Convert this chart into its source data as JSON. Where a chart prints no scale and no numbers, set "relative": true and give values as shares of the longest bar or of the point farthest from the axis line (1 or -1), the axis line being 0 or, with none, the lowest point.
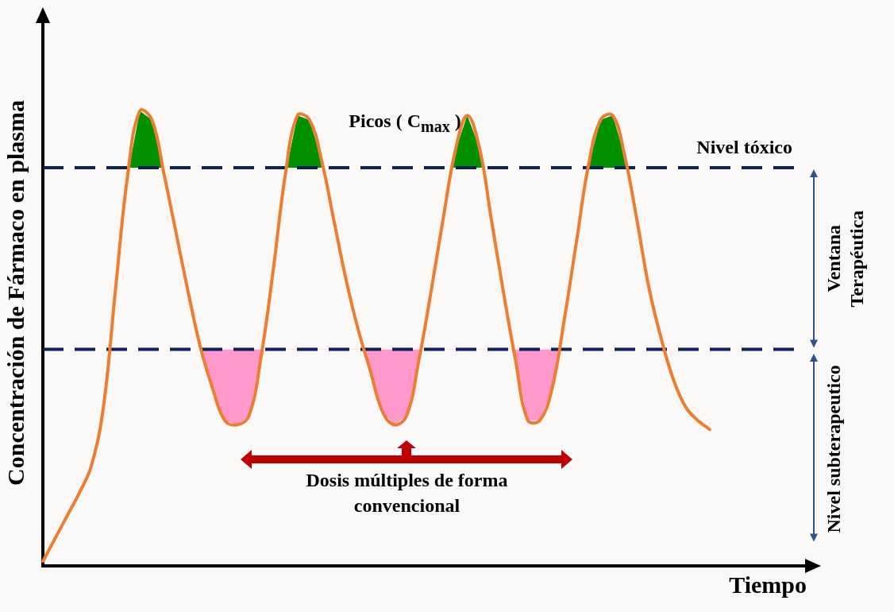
{
  "chart_data": {
    "type": "line",
    "relative": true,
    "xlabel": "Tiempo",
    "ylabel": "Concentración de Fármaco en plasma",
    "categories": [
      null,
      null,
      null,
      null,
      null,
      null,
      null,
      null,
      null,
      null,
      null,
      null,
      null,
      null,
      null,
      null,
      null,
      null,
      null,
      null,
      null,
      null,
      null,
      null,
      null,
      null,
      null,
      null,
      null,
      null,
      null,
      null,
      null,
      null,
      null,
      null,
      null,
      null,
      null,
      null,
      null,
      null,
      null,
      null,
      null,
      null,
      null,
      null,
      null,
      null,
      null,
      null,
      null,
      null,
      null,
      null,
      null,
      null,
      null,
      null,
      null,
      null,
      null,
      null
    ],
    "series": [
      {
        "color": "#ed7d31",
        "values": [
          0.01,
          0.06,
          0.11,
          0.16,
          0.22,
          0.35,
          0.61,
          0.86,
          1,
          0.98,
          0.86,
          0.73,
          0.6,
          0.48,
          0.39,
          0.32,
          0.31,
          0.33,
          0.46,
          0.65,
          0.86,
          0.99,
          0.98,
          0.89,
          0.76,
          0.63,
          0.52,
          0.43,
          0.34,
          0.31,
          0.33,
          0.45,
          0.6,
          0.76,
          0.91,
          0.99,
          0.92,
          0.76,
          0.6,
          0.45,
          0.32,
          0.32,
          0.39,
          0.54,
          0.71,
          0.88,
          0.98,
          0.99,
          0.9,
          0.76,
          0.61,
          0.5,
          0.41,
          0.35,
          0.32,
          0.3,
          null,
          null,
          null,
          null,
          null,
          null,
          null,
          null
        ]
      }
    ],
    "ref_lines": [
      {
        "axis": "y",
        "value": 0.875,
        "label": "Nivel tóxico",
        "color": "#0d1f5c",
        "line_style": "dashed"
      },
      {
        "axis": "y",
        "value": 0.476,
        "color": "#0d1f5c",
        "line_style": "dashed"
      }
    ],
    "annotations": [
      "Picos ( C$_{max}$ )",
      "Dosis múltiples de forma convencional",
      "Ventana Terapéutica",
      "Nivel subterapeutico"
    ],
    "grid": false,
    "legend": false,
    "marker": "none",
    "line_style": "solid"
  }
}
